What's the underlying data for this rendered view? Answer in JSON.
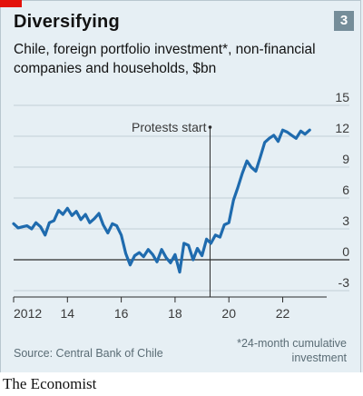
{
  "header": {
    "title": "Diversifying",
    "chart_number": "3",
    "subtitle": "Chile, foreign portfolio investment*, non-financial companies and households, $bn"
  },
  "footer": {
    "source": "Source: Central Bank of Chile",
    "footnote": "*24-month cumulative investment",
    "brand": "The Economist"
  },
  "colors": {
    "line": "#1f6bae",
    "accent_red": "#e3120b",
    "badge": "#758d99",
    "grid": "#c3cfd6",
    "background": "#e6eff4"
  },
  "chart_data": {
    "type": "line",
    "ylim": [
      -3,
      15
    ],
    "yticks": [
      -3,
      0,
      3,
      6,
      9,
      12,
      15
    ],
    "ytick_labels": [
      "-3",
      "0",
      "3",
      "6",
      "9",
      "12",
      "15"
    ],
    "xlim": [
      2012,
      2023.5
    ],
    "xticks": [
      2012,
      2014,
      2016,
      2018,
      2020,
      2022
    ],
    "xtick_labels": [
      "2012",
      "14",
      "16",
      "18",
      "20",
      "22"
    ],
    "grid": true,
    "annotations": [
      {
        "text": "Protests start",
        "x": 2019.3
      }
    ],
    "series": [
      {
        "x": [
          2012.0,
          2012.17,
          2012.33,
          2012.5,
          2012.67,
          2012.83,
          2013.0,
          2013.17,
          2013.33,
          2013.5,
          2013.67,
          2013.83,
          2014.0,
          2014.17,
          2014.33,
          2014.5,
          2014.67,
          2014.83,
          2015.0,
          2015.17,
          2015.33,
          2015.5,
          2015.67,
          2015.83,
          2016.0,
          2016.17,
          2016.33,
          2016.5,
          2016.67,
          2016.83,
          2017.0,
          2017.17,
          2017.33,
          2017.5,
          2017.67,
          2017.83,
          2018.0,
          2018.17,
          2018.33,
          2018.5,
          2018.67,
          2018.83,
          2019.0,
          2019.17,
          2019.33,
          2019.5,
          2019.67,
          2019.83,
          2020.0,
          2020.17,
          2020.33,
          2020.5,
          2020.67,
          2020.83,
          2021.0,
          2021.17,
          2021.33,
          2021.5,
          2021.67,
          2021.83,
          2022.0,
          2022.17,
          2022.33,
          2022.5,
          2022.67,
          2022.83,
          2023.0
        ],
        "y": [
          3.5,
          3.1,
          3.2,
          3.3,
          3.0,
          3.6,
          3.2,
          2.4,
          3.6,
          3.8,
          4.8,
          4.4,
          5.0,
          4.3,
          4.7,
          3.9,
          4.4,
          3.6,
          4.0,
          4.5,
          3.4,
          2.6,
          3.5,
          3.3,
          2.4,
          0.6,
          -0.5,
          0.4,
          0.7,
          0.3,
          1.0,
          0.5,
          -0.2,
          1.0,
          0.2,
          -0.3,
          0.5,
          -1.2,
          1.6,
          1.4,
          0.0,
          1.1,
          0.4,
          2.0,
          1.6,
          2.4,
          2.2,
          3.4,
          3.6,
          5.8,
          7.0,
          8.4,
          9.6,
          9.0,
          8.6,
          10.0,
          11.4,
          11.8,
          12.1,
          11.5,
          12.6,
          12.4,
          12.1,
          11.8,
          12.5,
          12.2,
          12.6
        ]
      }
    ]
  }
}
